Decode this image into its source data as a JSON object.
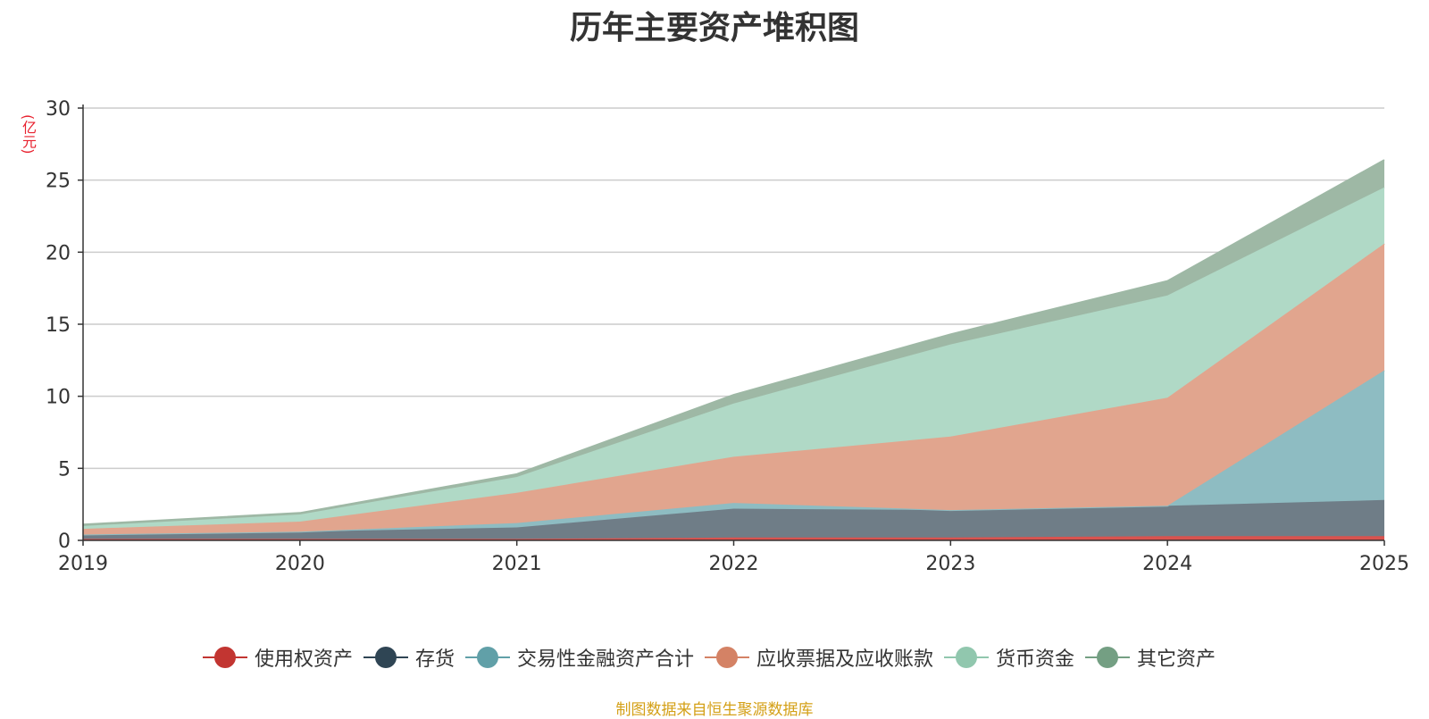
{
  "chart_data": {
    "type": "area",
    "stacked": true,
    "title": "历年主要资产堆积图",
    "ylabel": "(亿元)",
    "xlabel": "",
    "x": [
      "2019",
      "2020",
      "2021",
      "2022",
      "2023",
      "2024",
      "2025"
    ],
    "ylim": [
      0,
      30
    ],
    "yticks": [
      "0",
      "5",
      "10",
      "15",
      "20",
      "25",
      "30"
    ],
    "grid": true,
    "legend_position": "bottom",
    "series": [
      {
        "name": "使用权资产",
        "color": "#c23531",
        "fill": "#d9534f",
        "values": [
          0.1,
          0.1,
          0.1,
          0.2,
          0.2,
          0.3,
          0.3
        ]
      },
      {
        "name": "存货",
        "color": "#2f4554",
        "fill": "#6f7d87",
        "values": [
          0.3,
          0.5,
          0.8,
          2.0,
          1.9,
          2.1,
          2.5
        ]
      },
      {
        "name": "交易性金融资产合计",
        "color": "#61a0a8",
        "fill": "#8ebcc2",
        "values": [
          0.0,
          0.0,
          0.3,
          0.4,
          0.0,
          0.0,
          9.0
        ]
      },
      {
        "name": "应收票据及应收账款",
        "color": "#d48265",
        "fill": "#e1a58e",
        "values": [
          0.4,
          0.7,
          2.1,
          3.2,
          5.1,
          7.5,
          8.8
        ]
      },
      {
        "name": "货币资金",
        "color": "#91c7ae",
        "fill": "#b0d9c6",
        "values": [
          0.2,
          0.5,
          1.1,
          3.7,
          6.4,
          7.1,
          3.9
        ]
      },
      {
        "name": "其它资产",
        "color": "#749f83",
        "fill": "#9eb8a5",
        "values": [
          0.1,
          0.1,
          0.2,
          0.6,
          0.7,
          1.0,
          1.9
        ]
      }
    ]
  },
  "source_note": "制图数据来自恒生聚源数据库"
}
